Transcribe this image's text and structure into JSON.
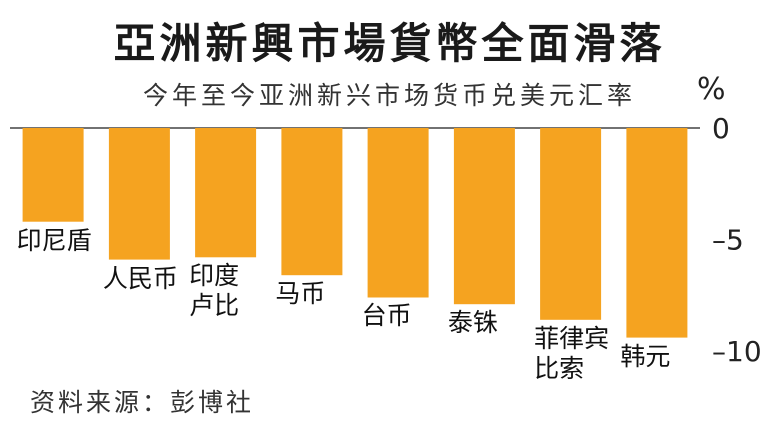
{
  "chart_data": {
    "type": "bar",
    "title": "亞洲新興市場貨幣全面滑落",
    "subtitle": "今年至今亚洲新兴市场货币兑美元汇率",
    "unit": "%",
    "categories": [
      "印尼盾",
      "人民币",
      "印度卢比",
      "马币",
      "台币",
      "泰铢",
      "菲律宾比索",
      "韩元"
    ],
    "category_lines": [
      [
        "印尼盾"
      ],
      [
        "人民币"
      ],
      [
        "印度",
        "卢比"
      ],
      [
        "马币"
      ],
      [
        "台币"
      ],
      [
        "泰铢"
      ],
      [
        "菲律宾",
        "比索"
      ],
      [
        "韩元"
      ]
    ],
    "values": [
      -4.2,
      -5.9,
      -5.8,
      -6.6,
      -7.6,
      -7.9,
      -8.6,
      -9.4
    ],
    "yticks": [
      0,
      -5,
      -10
    ],
    "ytick_labels": [
      "0",
      "–5",
      "–10"
    ],
    "ylim": [
      -10.5,
      0
    ],
    "bar_color": "#f5a320",
    "source": "资料来源：彭博社"
  }
}
